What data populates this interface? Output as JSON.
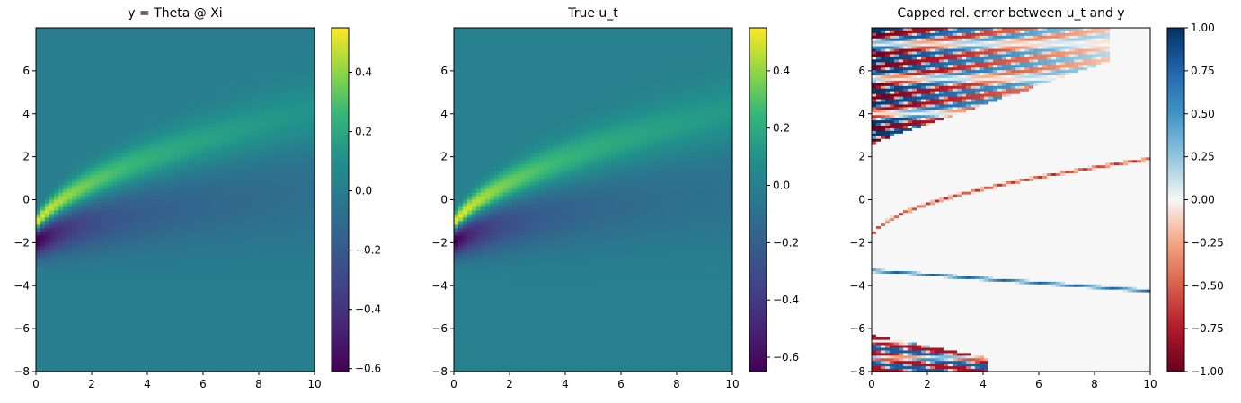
{
  "chart_data": [
    {
      "type": "heatmap",
      "title": "y = Theta @ Xi",
      "colormap": "viridis",
      "xlim": [
        0,
        10
      ],
      "ylim": [
        -8,
        8
      ],
      "xticks": [
        0,
        2,
        4,
        6,
        8,
        10
      ],
      "yticks": [
        -8,
        -6,
        -4,
        -2,
        0,
        2,
        4,
        6
      ],
      "colorbar": {
        "min": -0.61,
        "max": 0.55,
        "ticks": [
          -0.6,
          -0.4,
          -0.2,
          0.0,
          0.2,
          0.4
        ],
        "tick_labels": [
          "−0.6",
          "−0.4",
          "−0.2",
          "0.0",
          "0.2",
          "0.4"
        ]
      }
    },
    {
      "type": "heatmap",
      "title": "True u_t",
      "colormap": "viridis",
      "xlim": [
        0,
        10
      ],
      "ylim": [
        -8,
        8
      ],
      "xticks": [
        0,
        2,
        4,
        6,
        8,
        10
      ],
      "yticks": [
        -8,
        -6,
        -4,
        -2,
        0,
        2,
        4,
        6
      ],
      "colorbar": {
        "min": -0.65,
        "max": 0.55,
        "ticks": [
          -0.6,
          -0.4,
          -0.2,
          0.0,
          0.2,
          0.4
        ],
        "tick_labels": [
          "−0.6",
          "−0.4",
          "−0.2",
          "0.0",
          "0.2",
          "0.4"
        ]
      }
    },
    {
      "type": "heatmap",
      "title": "Capped rel. error between u_t and y",
      "colormap": "RdBu",
      "xlim": [
        0,
        10
      ],
      "ylim": [
        -8,
        8
      ],
      "xticks": [
        0,
        2,
        4,
        6,
        8,
        10
      ],
      "yticks": [
        -8,
        -6,
        -4,
        -2,
        0,
        2,
        4,
        6
      ],
      "colorbar": {
        "min": -1.0,
        "max": 1.0,
        "ticks": [
          -1.0,
          -0.75,
          -0.5,
          -0.25,
          0.0,
          0.25,
          0.5,
          0.75,
          1.0
        ],
        "tick_labels": [
          "−1.00",
          "−0.75",
          "−0.50",
          "−0.25",
          "0.00",
          "0.25",
          "0.50",
          "0.75",
          "1.00"
        ]
      }
    }
  ]
}
